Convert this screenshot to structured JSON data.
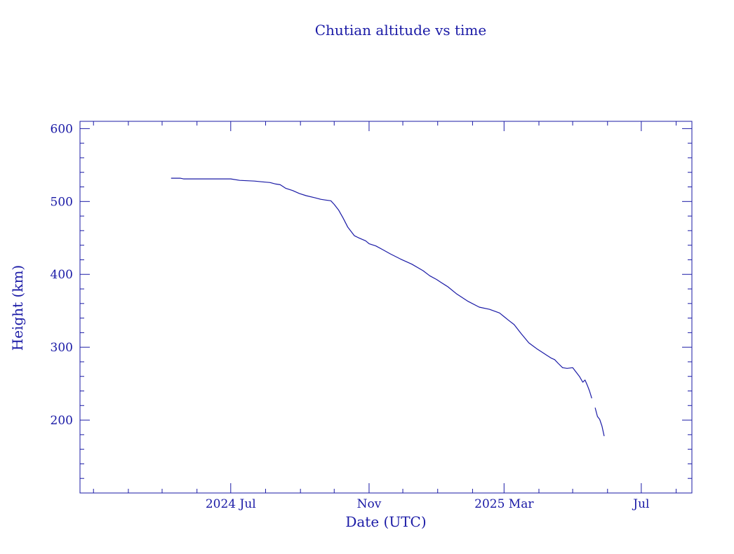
{
  "colors": {
    "ink": "#1a1aa6",
    "background": "#ffffff"
  },
  "chart_data": {
    "type": "line",
    "title": "Chutian altitude vs time",
    "xlabel": "Date (UTC)",
    "ylabel": "Height (km)",
    "xlim": [
      "2024-02-18",
      "2025-08-15"
    ],
    "ylim": [
      100,
      610
    ],
    "x_ticks": [
      {
        "date": "2024-07-01",
        "label": "2024 Jul"
      },
      {
        "date": "2024-11-01",
        "label": "Nov"
      },
      {
        "date": "2025-03-01",
        "label": "2025 Mar"
      },
      {
        "date": "2025-07-01",
        "label": "Jul"
      }
    ],
    "y_ticks": [
      200,
      300,
      400,
      500,
      600
    ],
    "grid": false,
    "legend": "none",
    "series": [
      {
        "x": [
          "2024-05-09",
          "2024-05-17",
          "2024-05-20",
          "2024-06-10",
          "2024-07-01",
          "2024-07-09",
          "2024-07-22",
          "2024-07-29",
          "2024-08-05",
          "2024-08-10",
          "2024-08-14",
          "2024-08-19",
          "2024-08-25",
          "2024-08-31",
          "2024-09-06",
          "2024-09-14",
          "2024-09-19",
          "2024-09-23",
          "2024-09-28",
          "2024-10-01",
          "2024-10-05",
          "2024-10-09",
          "2024-10-13",
          "2024-10-19",
          "2024-10-23",
          "2024-10-29",
          "2024-11-01",
          "2024-11-07",
          "2024-11-13",
          "2024-11-20",
          "2024-11-29",
          "2024-12-09",
          "2024-12-19",
          "2024-12-25",
          "2024-12-31",
          "2025-01-04",
          "2025-01-10",
          "2025-01-18",
          "2025-01-28",
          "2025-02-07",
          "2025-02-16",
          "2025-02-25",
          "2025-03-01",
          "2025-03-05",
          "2025-03-10",
          "2025-03-16",
          "2025-03-23",
          "2025-03-30",
          "2025-04-03",
          "2025-04-08",
          "2025-04-12",
          "2025-04-15",
          "2025-04-18",
          "2025-04-22",
          "2025-04-26",
          "2025-05-01",
          "2025-05-04",
          "2025-05-07",
          "2025-05-10",
          "2025-05-12",
          "2025-05-14",
          "2025-05-16",
          "2025-05-18"
        ],
        "y": [
          532,
          532,
          531,
          531,
          531,
          529,
          528,
          527,
          526,
          524,
          523,
          518,
          515,
          511,
          508,
          505,
          503,
          502,
          501,
          496,
          488,
          477,
          465,
          453,
          450,
          446,
          442,
          439,
          434,
          428,
          421,
          414,
          405,
          398,
          393,
          389,
          383,
          373,
          363,
          355,
          352,
          347,
          342,
          337,
          331,
          319,
          306,
          298,
          294,
          289,
          285,
          283,
          278,
          272,
          271,
          272,
          266,
          260,
          252,
          255,
          248,
          240,
          230
        ]
      },
      {
        "x": [
          "2025-05-21",
          "2025-05-23",
          "2025-05-25",
          "2025-05-27",
          "2025-05-29"
        ],
        "y": [
          217,
          205,
          201,
          192,
          178
        ]
      }
    ]
  }
}
